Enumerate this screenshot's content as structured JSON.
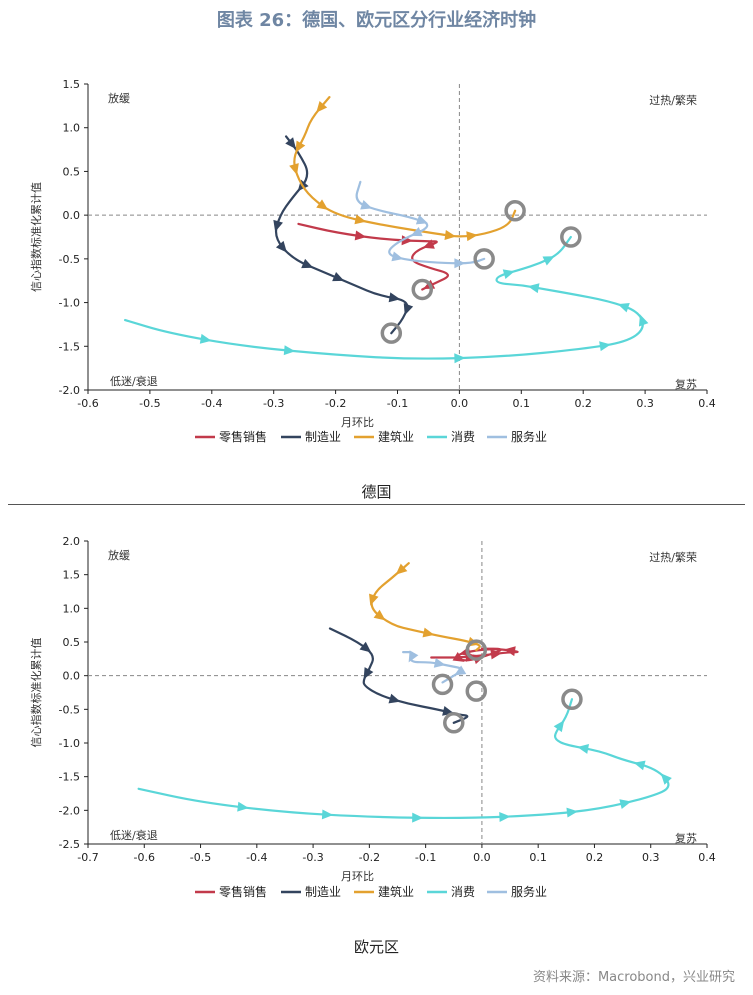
{
  "title": "图表 26：德国、欧元区分行业经济时钟",
  "source": "资料来源：Macrobond，兴业研究",
  "colors": {
    "零售销售": "#c23a4b",
    "制造业": "#33445e",
    "建筑业": "#e3a12f",
    "消费": "#5ad6d8",
    "服务业": "#9fbfe0"
  },
  "chart_data": [
    {
      "type": "line",
      "caption": "德国",
      "xlabel": "月环比",
      "ylabel": "信心指数标准化累计值",
      "xlim": [
        -0.6,
        0.4
      ],
      "ylim": [
        -2.0,
        1.5
      ],
      "xticks": [
        "-0.6",
        "-0.5",
        "-0.4",
        "-0.3",
        "-0.2",
        "-0.1",
        "0.0",
        "0.1",
        "0.2",
        "0.3",
        "0.4"
      ],
      "yticks": [
        "-2.0",
        "-1.5",
        "-1.0",
        "-0.5",
        "0.0",
        "0.5",
        "1.0",
        "1.5"
      ],
      "quadrants": {
        "top_left": "放缓",
        "top_right": "过热/繁荣",
        "bottom_left": "低迷/衰退",
        "bottom_right": "复苏"
      },
      "legend": [
        "零售销售",
        "制造业",
        "建筑业",
        "消费",
        "服务业"
      ],
      "series": [
        {
          "name": "零售销售",
          "points": [
            [
              -0.26,
              -0.1
            ],
            [
              -0.2,
              -0.2
            ],
            [
              -0.12,
              -0.28
            ],
            [
              -0.05,
              -0.3
            ],
            [
              -0.03,
              -0.3
            ],
            [
              -0.07,
              -0.4
            ],
            [
              -0.08,
              -0.52
            ],
            [
              -0.05,
              -0.6
            ],
            [
              -0.01,
              -0.68
            ],
            [
              -0.04,
              -0.78
            ],
            [
              -0.06,
              -0.85
            ]
          ],
          "arrows": [
            1,
            2,
            4,
            9
          ]
        },
        {
          "name": "制造业",
          "points": [
            [
              -0.28,
              0.9
            ],
            [
              -0.26,
              0.72
            ],
            [
              -0.24,
              0.45
            ],
            [
              -0.27,
              0.2
            ],
            [
              -0.29,
              0.0
            ],
            [
              -0.3,
              -0.25
            ],
            [
              -0.27,
              -0.5
            ],
            [
              -0.22,
              -0.65
            ],
            [
              -0.17,
              -0.8
            ],
            [
              -0.13,
              -0.92
            ],
            [
              -0.08,
              -0.98
            ],
            [
              -0.09,
              -1.18
            ],
            [
              -0.11,
              -1.35
            ]
          ],
          "arrows": [
            0,
            2,
            4,
            5,
            6,
            7,
            9,
            10
          ]
        },
        {
          "name": "建筑业",
          "points": [
            [
              -0.21,
              1.35
            ],
            [
              -0.24,
              1.1
            ],
            [
              -0.25,
              0.9
            ],
            [
              -0.27,
              0.65
            ],
            [
              -0.26,
              0.4
            ],
            [
              -0.24,
              0.2
            ],
            [
              -0.2,
              0.0
            ],
            [
              -0.12,
              -0.12
            ],
            [
              -0.03,
              -0.22
            ],
            [
              0.0,
              -0.25
            ],
            [
              0.04,
              -0.22
            ],
            [
              0.08,
              -0.12
            ],
            [
              0.09,
              0.05
            ]
          ],
          "arrows": [
            0,
            2,
            3,
            5,
            6,
            8,
            9
          ]
        },
        {
          "name": "消费",
          "points": [
            [
              -0.54,
              -1.2
            ],
            [
              -0.47,
              -1.35
            ],
            [
              -0.35,
              -1.5
            ],
            [
              -0.2,
              -1.6
            ],
            [
              -0.07,
              -1.65
            ],
            [
              0.07,
              -1.62
            ],
            [
              0.2,
              -1.53
            ],
            [
              0.27,
              -1.45
            ],
            [
              0.3,
              -1.3
            ],
            [
              0.29,
              -1.1
            ],
            [
              0.24,
              -0.98
            ],
            [
              0.18,
              -0.9
            ],
            [
              0.14,
              -0.85
            ],
            [
              0.1,
              -0.8
            ],
            [
              0.06,
              -0.78
            ],
            [
              0.06,
              -0.7
            ],
            [
              0.1,
              -0.62
            ],
            [
              0.13,
              -0.55
            ],
            [
              0.16,
              -0.45
            ],
            [
              0.18,
              -0.25
            ]
          ],
          "arrows": [
            1,
            2,
            4,
            6,
            8,
            9,
            12,
            15,
            17
          ]
        },
        {
          "name": "服务业",
          "points": [
            [
              -0.16,
              0.38
            ],
            [
              -0.17,
              0.15
            ],
            [
              -0.13,
              0.05
            ],
            [
              -0.08,
              -0.02
            ],
            [
              -0.04,
              -0.12
            ],
            [
              -0.1,
              -0.3
            ],
            [
              -0.12,
              -0.45
            ],
            [
              -0.08,
              -0.52
            ],
            [
              -0.02,
              -0.55
            ],
            [
              0.02,
              -0.55
            ],
            [
              0.04,
              -0.5
            ]
          ],
          "arrows": [
            1,
            3,
            4,
            6,
            8
          ]
        }
      ],
      "endpoints": [
        [
          -0.06,
          -0.85
        ],
        [
          -0.11,
          -1.35
        ],
        [
          0.09,
          0.05
        ],
        [
          0.18,
          -0.25
        ],
        [
          0.04,
          -0.5
        ]
      ]
    },
    {
      "type": "line",
      "caption": "欧元区",
      "xlabel": "月环比",
      "ylabel": "信心指数标准化累计值",
      "xlim": [
        -0.7,
        0.4
      ],
      "ylim": [
        -2.5,
        2.0
      ],
      "xticks": [
        "-0.7",
        "-0.6",
        "-0.5",
        "-0.4",
        "-0.3",
        "-0.2",
        "-0.1",
        "0.0",
        "0.1",
        "0.2",
        "0.3",
        "0.4"
      ],
      "yticks": [
        "-2.5",
        "-2.0",
        "-1.5",
        "-1.0",
        "-0.5",
        "0.0",
        "0.5",
        "1.0",
        "1.5",
        "2.0"
      ],
      "quadrants": {
        "top_left": "放缓",
        "top_right": "过热/繁荣",
        "bottom_left": "低迷/衰退",
        "bottom_right": "复苏"
      },
      "legend": [
        "零售销售",
        "制造业",
        "建筑业",
        "消费",
        "服务业"
      ],
      "series": [
        {
          "name": "零售销售",
          "points": [
            [
              -0.09,
              0.27
            ],
            [
              -0.04,
              0.27
            ],
            [
              0.0,
              0.3
            ],
            [
              0.05,
              0.35
            ],
            [
              0.07,
              0.35
            ],
            [
              0.03,
              0.4
            ],
            [
              -0.01,
              0.38
            ],
            [
              -0.05,
              0.3
            ],
            [
              -0.03,
              0.2
            ],
            [
              0.02,
              0.33
            ],
            [
              0.04,
              0.4
            ],
            [
              0.0,
              0.4
            ]
          ],
          "arrows": [
            1,
            2,
            4,
            6,
            7,
            8
          ]
        },
        {
          "name": "制造业",
          "points": [
            [
              -0.27,
              0.7
            ],
            [
              -0.22,
              0.5
            ],
            [
              -0.19,
              0.3
            ],
            [
              -0.2,
              0.1
            ],
            [
              -0.21,
              -0.05
            ],
            [
              -0.21,
              -0.15
            ],
            [
              -0.18,
              -0.3
            ],
            [
              -0.13,
              -0.42
            ],
            [
              -0.08,
              -0.5
            ],
            [
              -0.04,
              -0.58
            ],
            [
              -0.02,
              -0.6
            ],
            [
              -0.05,
              -0.7
            ]
          ],
          "arrows": [
            1,
            3,
            6,
            8
          ]
        },
        {
          "name": "建筑业",
          "points": [
            [
              -0.13,
              1.67
            ],
            [
              -0.16,
              1.45
            ],
            [
              -0.19,
              1.25
            ],
            [
              -0.2,
              1.0
            ],
            [
              -0.16,
              0.75
            ],
            [
              -0.12,
              0.67
            ],
            [
              -0.07,
              0.58
            ],
            [
              -0.03,
              0.52
            ],
            [
              0.0,
              0.45
            ],
            [
              -0.01,
              0.38
            ]
          ],
          "arrows": [
            0,
            2,
            3,
            5,
            7
          ]
        },
        {
          "name": "消费",
          "points": [
            [
              -0.61,
              -1.68
            ],
            [
              -0.5,
              -1.88
            ],
            [
              -0.35,
              -2.03
            ],
            [
              -0.2,
              -2.1
            ],
            [
              -0.03,
              -2.12
            ],
            [
              0.11,
              -2.07
            ],
            [
              0.21,
              -1.98
            ],
            [
              0.3,
              -1.8
            ],
            [
              0.34,
              -1.65
            ],
            [
              0.31,
              -1.38
            ],
            [
              0.25,
              -1.25
            ],
            [
              0.21,
              -1.12
            ],
            [
              0.15,
              -1.03
            ],
            [
              0.13,
              -0.95
            ],
            [
              0.13,
              -0.85
            ],
            [
              0.15,
              -0.62
            ],
            [
              0.16,
              -0.35
            ]
          ],
          "arrows": [
            1,
            2,
            3,
            4,
            5,
            6,
            8,
            9,
            11,
            14
          ]
        },
        {
          "name": "服务业",
          "points": [
            [
              -0.14,
              0.35
            ],
            [
              -0.12,
              0.35
            ],
            [
              -0.13,
              0.2
            ],
            [
              -0.09,
              0.2
            ],
            [
              -0.06,
              0.15
            ],
            [
              -0.03,
              0.1
            ],
            [
              -0.05,
              0.0
            ],
            [
              -0.07,
              -0.1
            ]
          ],
          "arrows": [
            1,
            3,
            5
          ]
        }
      ],
      "endpoints": [
        [
          -0.01,
          0.38
        ],
        [
          -0.05,
          -0.7
        ],
        [
          0.16,
          -0.35
        ],
        [
          -0.07,
          -0.13
        ],
        [
          -0.01,
          -0.23
        ]
      ]
    }
  ],
  "captions": [
    "德国",
    "欧元区"
  ]
}
